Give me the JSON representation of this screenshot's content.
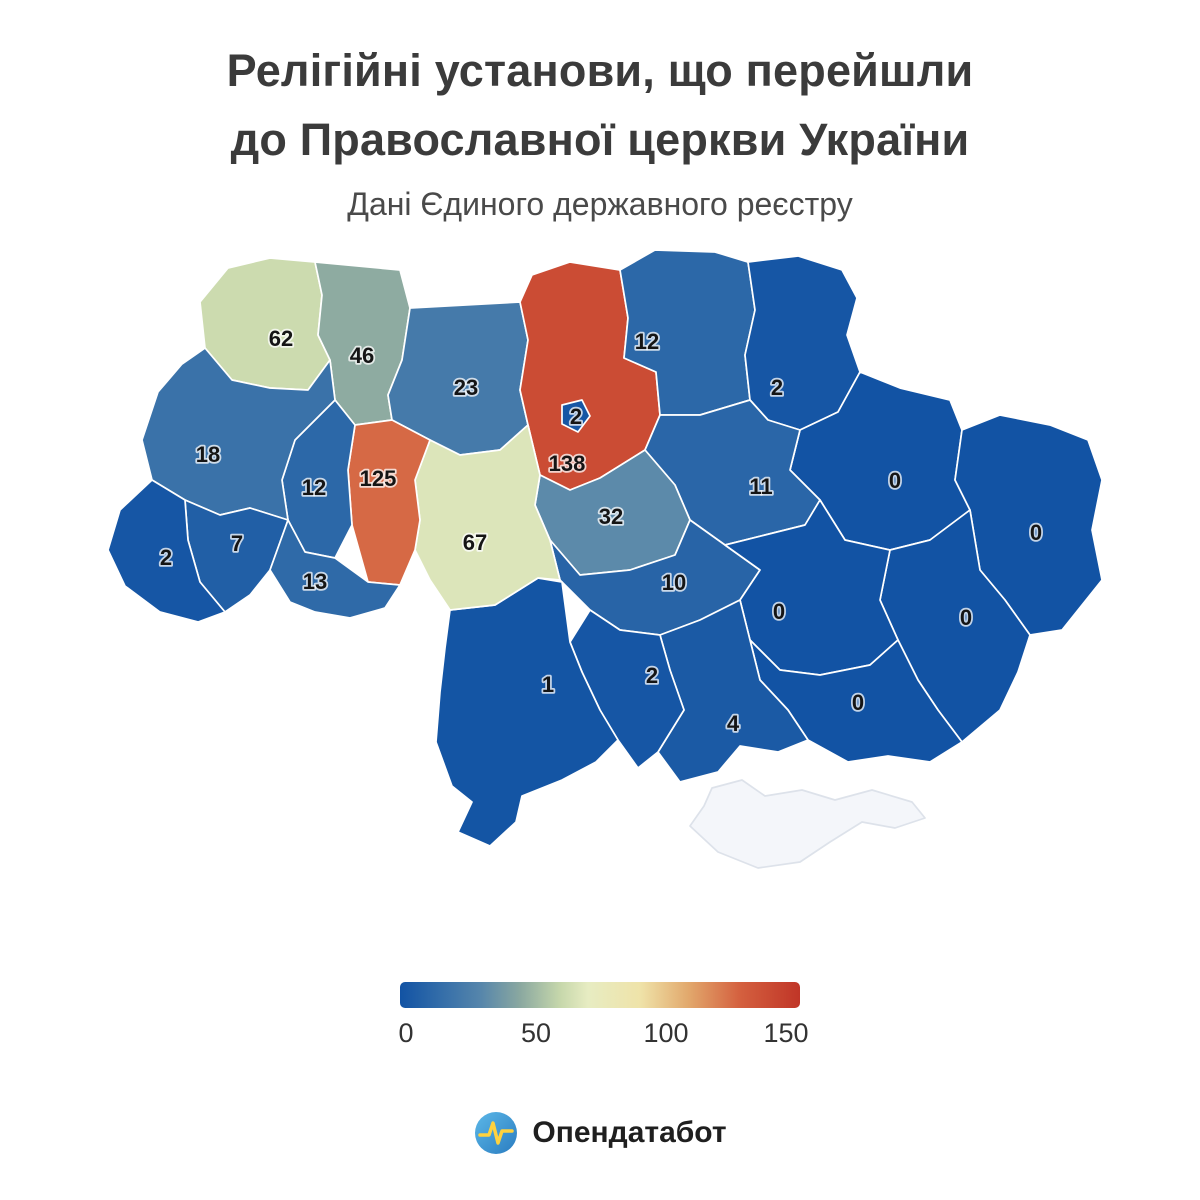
{
  "header": {
    "title_line1": "Релігійні установи, що перейшли",
    "title_line2": "до Православної церкви України",
    "subtitle": "Дані Єдиного державного реєстру"
  },
  "legend": {
    "ticks": [
      "0",
      "50",
      "100",
      "150"
    ]
  },
  "footer": {
    "brand": "Опендатабот"
  },
  "chart_data": {
    "type": "choropleth-map",
    "title": "Релігійні установи, що перейшли до Православної церкви України",
    "subtitle": "Дані Єдиного державного реєстру",
    "value_range": [
      0,
      150
    ],
    "legend_ticks": [
      0,
      50,
      100,
      150
    ],
    "no_data_color": "#f4f6fa",
    "color_stops": [
      [
        0.0,
        "#1253a4"
      ],
      [
        0.1,
        "#336da9"
      ],
      [
        0.2,
        "#5585ab"
      ],
      [
        0.3,
        "#8aa8a0"
      ],
      [
        0.4,
        "#c6d7ab"
      ],
      [
        0.47,
        "#e7ecc2"
      ],
      [
        0.6,
        "#efe3a9"
      ],
      [
        0.72,
        "#e2a96d"
      ],
      [
        0.85,
        "#d4603f"
      ],
      [
        1.0,
        "#c03527"
      ]
    ],
    "regions": [
      {
        "id": "volyn",
        "value": 62
      },
      {
        "id": "rivne",
        "value": 46
      },
      {
        "id": "zhytomyr",
        "value": 23
      },
      {
        "id": "kyiv-oblast",
        "value": 138
      },
      {
        "id": "kyiv-city",
        "value": 2
      },
      {
        "id": "chernihiv",
        "value": 12
      },
      {
        "id": "sumy",
        "value": 2
      },
      {
        "id": "kharkiv",
        "value": 0
      },
      {
        "id": "luhansk",
        "value": 0
      },
      {
        "id": "donetsk",
        "value": 0
      },
      {
        "id": "poltava",
        "value": 11
      },
      {
        "id": "cherkasy",
        "value": 32
      },
      {
        "id": "kirovohrad",
        "value": 10
      },
      {
        "id": "dnipro",
        "value": 0
      },
      {
        "id": "zaporizhzhia",
        "value": 0
      },
      {
        "id": "kherson",
        "value": 4
      },
      {
        "id": "mykolaiv",
        "value": 2
      },
      {
        "id": "odesa",
        "value": 1
      },
      {
        "id": "vinnytsia",
        "value": 67
      },
      {
        "id": "khmelnytskyi",
        "value": 125
      },
      {
        "id": "ternopil",
        "value": 12
      },
      {
        "id": "lviv",
        "value": 18
      },
      {
        "id": "ivano-frankivsk",
        "value": 7
      },
      {
        "id": "zakarpattia",
        "value": 2
      },
      {
        "id": "chernivtsi",
        "value": 13
      },
      {
        "id": "crimea",
        "value": null
      }
    ]
  }
}
